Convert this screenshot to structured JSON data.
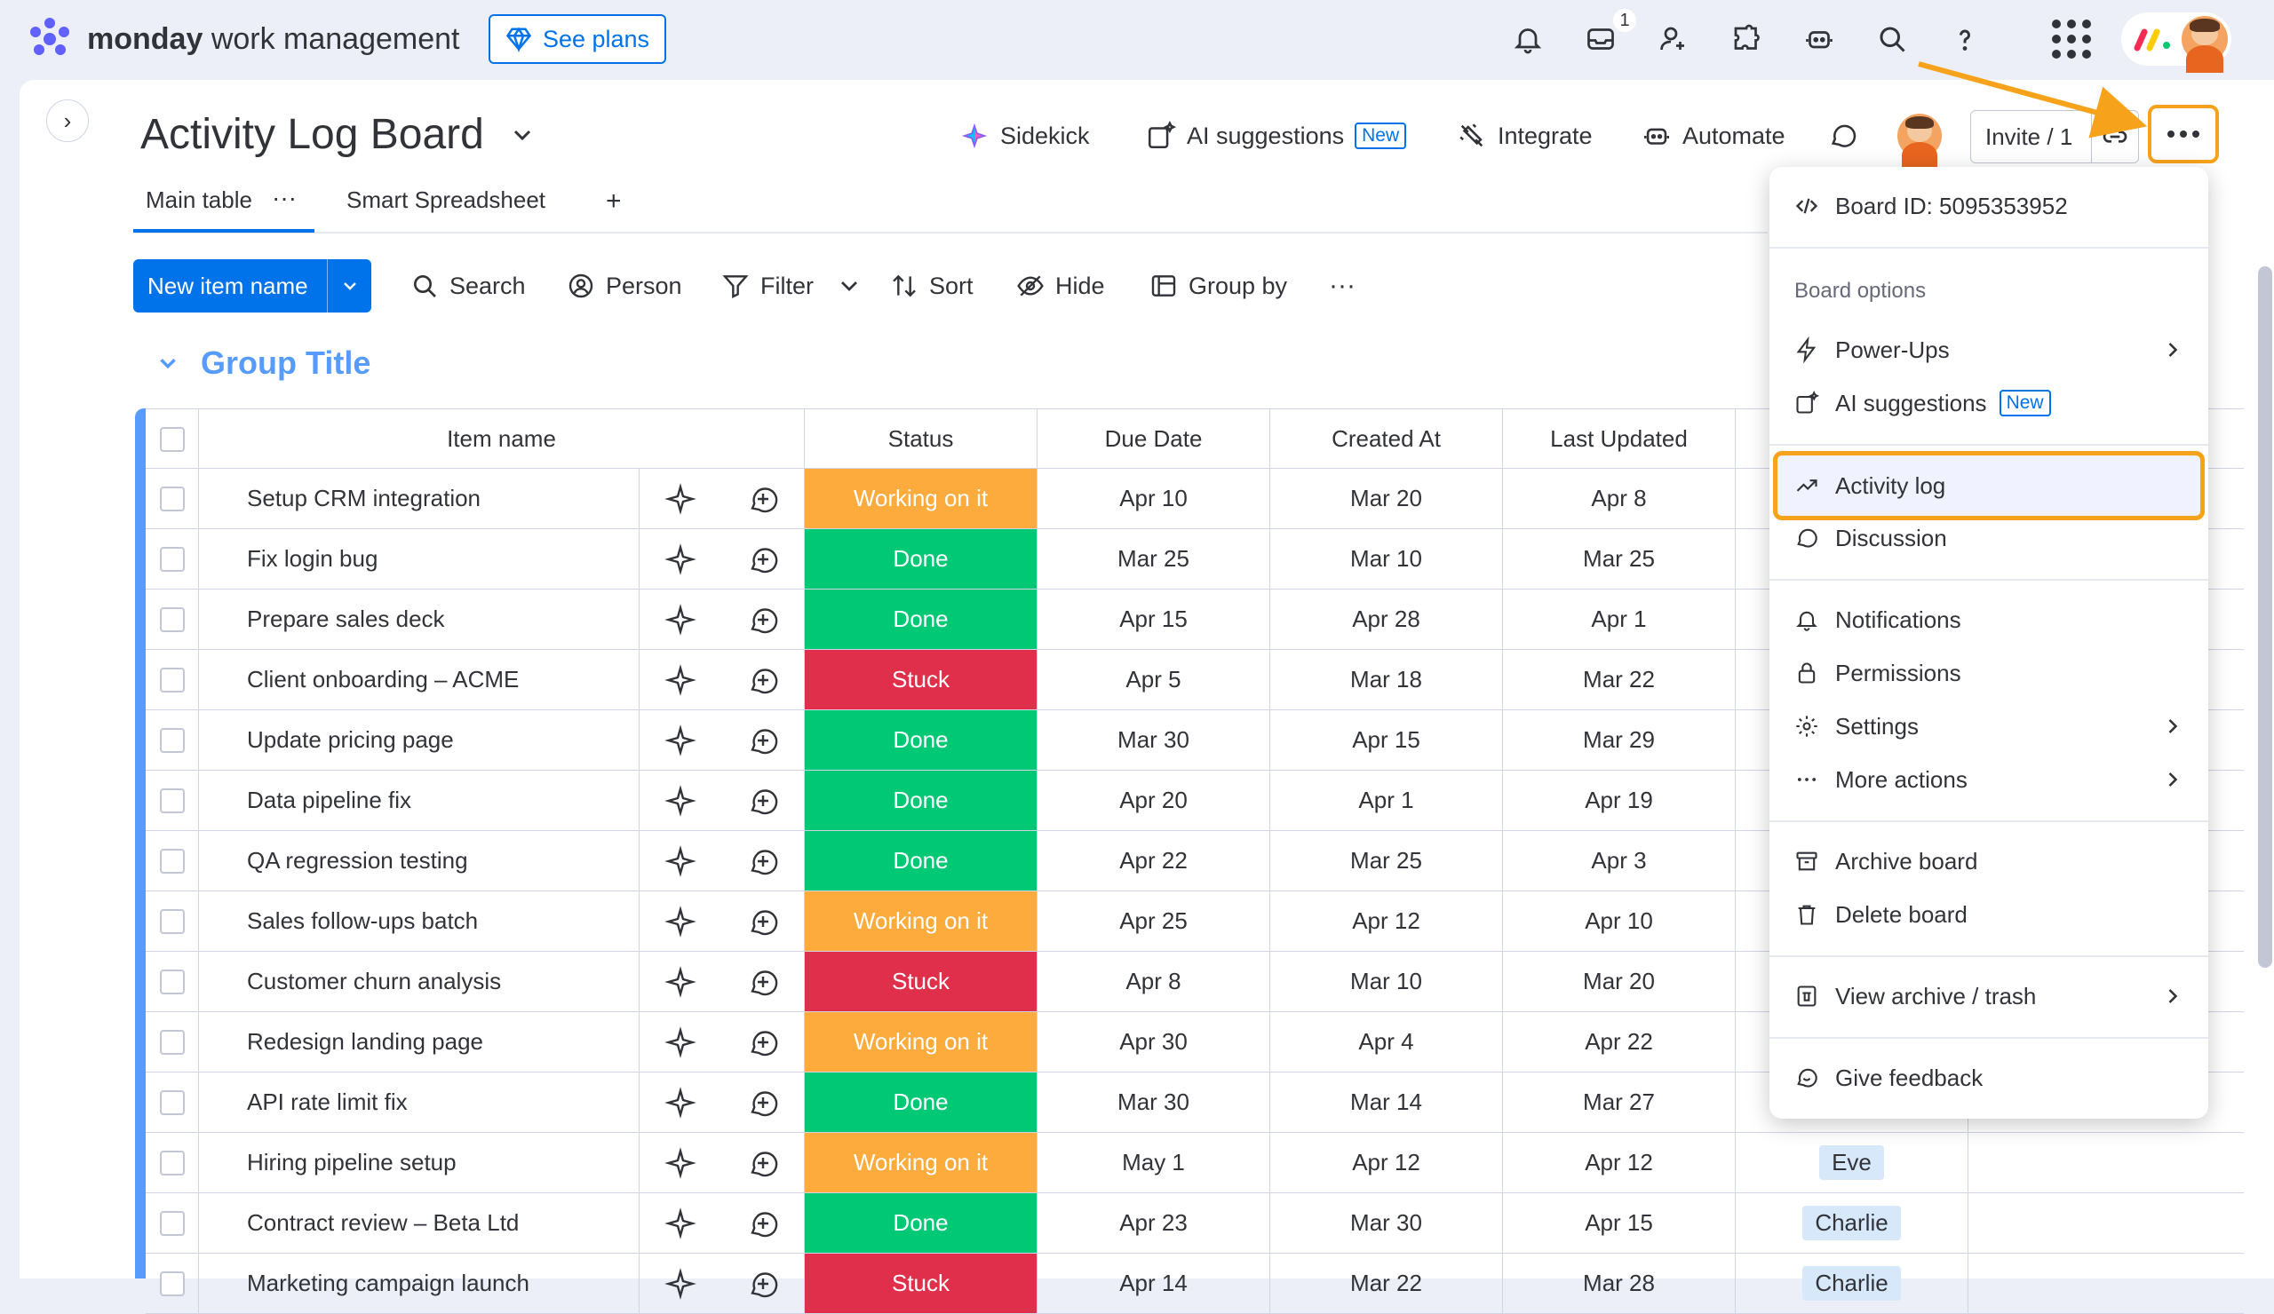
{
  "topbar": {
    "brand_bold": "monday",
    "brand_rest": "work management",
    "see_plans": "See plans",
    "inbox_count": "1"
  },
  "board": {
    "title": "Activity Log Board",
    "sidekick": "Sidekick",
    "ai_suggestions": "AI suggestions",
    "new_badge": "New",
    "integrate": "Integrate",
    "automate": "Automate",
    "invite": "Invite / 1"
  },
  "tabs": [
    {
      "label": "Main table"
    },
    {
      "label": "Smart Spreadsheet"
    }
  ],
  "tab_more": "···",
  "tab_add": "+",
  "toolbar": {
    "new_item": "New item name",
    "search": "Search",
    "person": "Person",
    "filter": "Filter",
    "sort": "Sort",
    "hide": "Hide",
    "group_by": "Group by",
    "more": "···"
  },
  "group": {
    "title": "Group Title"
  },
  "columns": {
    "item_name": "Item name",
    "status": "Status",
    "due_date": "Due Date",
    "created_at": "Created At",
    "last_updated": "Last Updated"
  },
  "status_colors": {
    "Working on it": "#fdab3d",
    "Done": "#00c875",
    "Stuck": "#df2f4a"
  },
  "rows": [
    {
      "name": "Setup CRM integration",
      "status": "Working on it",
      "due": "Apr 10",
      "created": "Mar 20",
      "updated": "Apr 8",
      "person": ""
    },
    {
      "name": "Fix login bug",
      "status": "Done",
      "due": "Mar 25",
      "created": "Mar 10",
      "updated": "Mar 25",
      "person": ""
    },
    {
      "name": "Prepare sales deck",
      "status": "Done",
      "due": "Apr 15",
      "created": "Apr 28",
      "updated": "Apr 1",
      "person": ""
    },
    {
      "name": "Client onboarding – ACME",
      "status": "Stuck",
      "due": "Apr 5",
      "created": "Mar 18",
      "updated": "Mar 22",
      "person": ""
    },
    {
      "name": "Update pricing page",
      "status": "Done",
      "due": "Mar 30",
      "created": "Apr 15",
      "updated": "Mar 29",
      "person": ""
    },
    {
      "name": "Data pipeline fix",
      "status": "Done",
      "due": "Apr 20",
      "created": "Apr 1",
      "updated": "Apr 19",
      "person": ""
    },
    {
      "name": "QA regression testing",
      "status": "Done",
      "due": "Apr 22",
      "created": "Mar 25",
      "updated": "Apr 3",
      "person": ""
    },
    {
      "name": "Sales follow-ups batch",
      "status": "Working on it",
      "due": "Apr 25",
      "created": "Apr 12",
      "updated": "Apr 10",
      "person": ""
    },
    {
      "name": "Customer churn analysis",
      "status": "Stuck",
      "due": "Apr 8",
      "created": "Mar 10",
      "updated": "Mar 20",
      "person": ""
    },
    {
      "name": "Redesign landing page",
      "status": "Working on it",
      "due": "Apr 30",
      "created": "Apr 4",
      "updated": "Apr 22",
      "person": ""
    },
    {
      "name": "API rate limit fix",
      "status": "Done",
      "due": "Mar 30",
      "created": "Mar 14",
      "updated": "Mar 27",
      "person": ""
    },
    {
      "name": "Hiring pipeline setup",
      "status": "Working on it",
      "due": "May 1",
      "created": "Apr 12",
      "updated": "Apr 12",
      "person": "Eve"
    },
    {
      "name": "Contract review – Beta Ltd",
      "status": "Done",
      "due": "Apr 23",
      "created": "Mar 30",
      "updated": "Apr 15",
      "person": "Charlie"
    },
    {
      "name": "Marketing campaign launch",
      "status": "Stuck",
      "due": "Apr 14",
      "created": "Mar 22",
      "updated": "Mar 28",
      "person": "Charlie"
    }
  ],
  "menu": {
    "board_id": "Board ID: 5095353952",
    "board_options": "Board options",
    "power_ups": "Power-Ups",
    "ai_suggestions": "AI suggestions",
    "new_badge": "New",
    "activity_log": "Activity log",
    "discussion": "Discussion",
    "notifications": "Notifications",
    "permissions": "Permissions",
    "settings": "Settings",
    "more_actions": "More actions",
    "archive_board": "Archive board",
    "delete_board": "Delete board",
    "view_archive": "View archive / trash",
    "give_feedback": "Give feedback"
  },
  "highlight_color": "#f7a21b"
}
